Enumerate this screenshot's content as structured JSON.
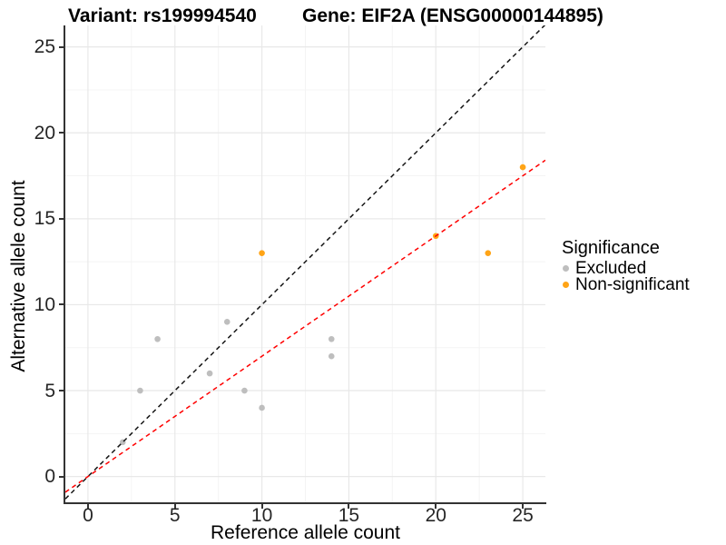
{
  "title": {
    "variant": "Variant: rs199994540",
    "gene": "Gene: EIF2A (ENSG00000144895)"
  },
  "chart_data": {
    "type": "scatter",
    "xlabel": "Reference allele count",
    "ylabel": "Alternative allele count",
    "x_ticks": [
      0,
      5,
      10,
      15,
      20,
      25
    ],
    "y_ticks": [
      0,
      5,
      10,
      15,
      20,
      25
    ],
    "x_minor_ticks": [
      2.5,
      7.5,
      12.5,
      17.5,
      22.5
    ],
    "y_minor_ticks": [
      2.5,
      7.5,
      12.5,
      17.5,
      22.5
    ],
    "xlim": [
      -1.3,
      26.3
    ],
    "ylim": [
      -1.5,
      26.25
    ],
    "grid": "major+minor",
    "series": [
      {
        "name": "Excluded",
        "color": "#BEBEBE",
        "points": [
          [
            2,
            2
          ],
          [
            3,
            5
          ],
          [
            4,
            8
          ],
          [
            7,
            6
          ],
          [
            8,
            9
          ],
          [
            9,
            5
          ],
          [
            10,
            4
          ],
          [
            14,
            7
          ],
          [
            14,
            8
          ]
        ]
      },
      {
        "name": "Non-significant",
        "color": "#FFA416",
        "points": [
          [
            10,
            13
          ],
          [
            20,
            14
          ],
          [
            23,
            13
          ],
          [
            25,
            18
          ]
        ]
      }
    ],
    "lines": [
      {
        "name": "identity-line",
        "slope": 1,
        "intercept": 0,
        "color": "#141414",
        "style": "dashed"
      },
      {
        "name": "expected-ratio-line",
        "slope": 0.7,
        "intercept": 0,
        "color": "#FF0000",
        "style": "dashed"
      }
    ],
    "legend": {
      "title": "Significance",
      "position": "right",
      "items": [
        {
          "label": "Excluded",
          "color": "#BEBEBE"
        },
        {
          "label": "Non-significant",
          "color": "#FFA416"
        }
      ]
    },
    "colors": {
      "grid_major": "#E8E8E8",
      "grid_minor": "#F4F4F4",
      "axis": "#333333",
      "tick_text": "#262626"
    }
  }
}
